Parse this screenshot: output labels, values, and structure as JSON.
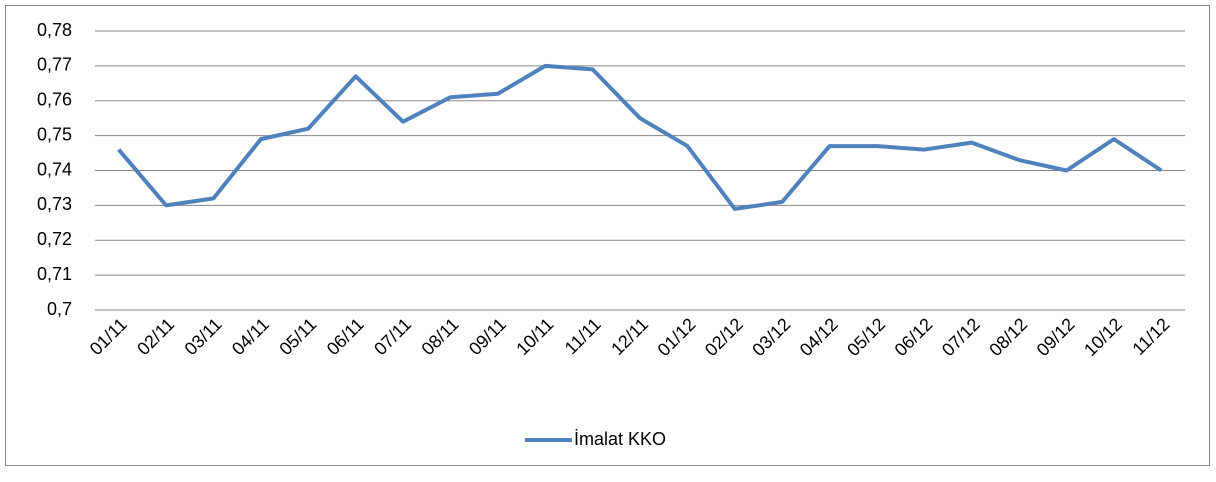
{
  "chart_data": {
    "type": "line",
    "categories": [
      "01/11",
      "02/11",
      "03/11",
      "04/11",
      "05/11",
      "06/11",
      "07/11",
      "08/11",
      "09/11",
      "10/11",
      "11/11",
      "12/11",
      "01/12",
      "02/12",
      "03/12",
      "04/12",
      "05/12",
      "06/12",
      "07/12",
      "08/12",
      "09/12",
      "10/12",
      "11/12"
    ],
    "series": [
      {
        "name": "İmalat KKO",
        "color": "#4f81bd",
        "values": [
          0.746,
          0.73,
          0.732,
          0.749,
          0.752,
          0.767,
          0.754,
          0.761,
          0.762,
          0.77,
          0.769,
          0.755,
          0.747,
          0.729,
          0.731,
          0.747,
          0.747,
          0.746,
          0.748,
          0.743,
          0.74,
          0.749,
          0.74
        ]
      }
    ],
    "ylim": [
      0.7,
      0.78
    ],
    "yticks": [
      {
        "value": 0.7,
        "label": "0,7"
      },
      {
        "value": 0.71,
        "label": "0,71"
      },
      {
        "value": 0.72,
        "label": "0,72"
      },
      {
        "value": 0.73,
        "label": "0,73"
      },
      {
        "value": 0.74,
        "label": "0,74"
      },
      {
        "value": 0.75,
        "label": "0,75"
      },
      {
        "value": 0.76,
        "label": "0,76"
      },
      {
        "value": 0.77,
        "label": "0,77"
      },
      {
        "value": 0.78,
        "label": "0,78"
      }
    ],
    "grid": true,
    "legend": "bottom"
  }
}
